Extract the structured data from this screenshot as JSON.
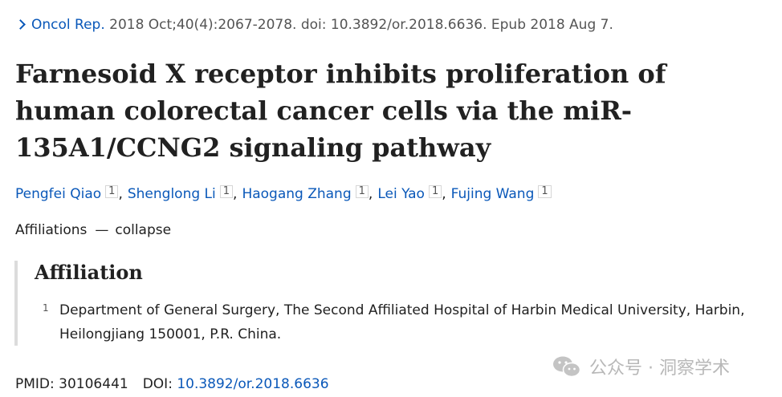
{
  "citation": {
    "journal": "Oncol Rep.",
    "details": " 2018 Oct;40(4):2067-2078. doi: 10.3892/or.2018.6636. Epub 2018 Aug 7."
  },
  "article": {
    "title": "Farnesoid X receptor inhibits proliferation of human colorectal cancer cells via the miR-135A1/CCNG2 signaling pathway"
  },
  "authors": [
    {
      "name": "Pengfei Qiao",
      "affiliation": "1"
    },
    {
      "name": "Shenglong Li",
      "affiliation": "1"
    },
    {
      "name": "Haogang Zhang",
      "affiliation": "1"
    },
    {
      "name": "Lei Yao",
      "affiliation": "1"
    },
    {
      "name": "Fujing Wang",
      "affiliation": "1"
    }
  ],
  "author_separator": ",",
  "affiliations_toggle": {
    "label": "Affiliations",
    "dash": "—",
    "action": "collapse"
  },
  "affiliation_section": {
    "heading": "Affiliation",
    "items": [
      {
        "number": "1",
        "text": "Department of General Surgery, The Second Affiliated Hospital of Harbin Medical University, Harbin, Heilongjiang 150001, P.R. China."
      }
    ]
  },
  "identifiers": {
    "pmid_label": "PMID:",
    "pmid": "30106441",
    "doi_label": "DOI:",
    "doi": "10.3892/or.2018.6636"
  },
  "watermark": {
    "text": "公众号 · 洞察学术",
    "icon": "wechat-icon"
  },
  "colors": {
    "link": "#0a58b9",
    "text": "#212121",
    "muted": "#545454",
    "border": "#dcdcdc"
  }
}
